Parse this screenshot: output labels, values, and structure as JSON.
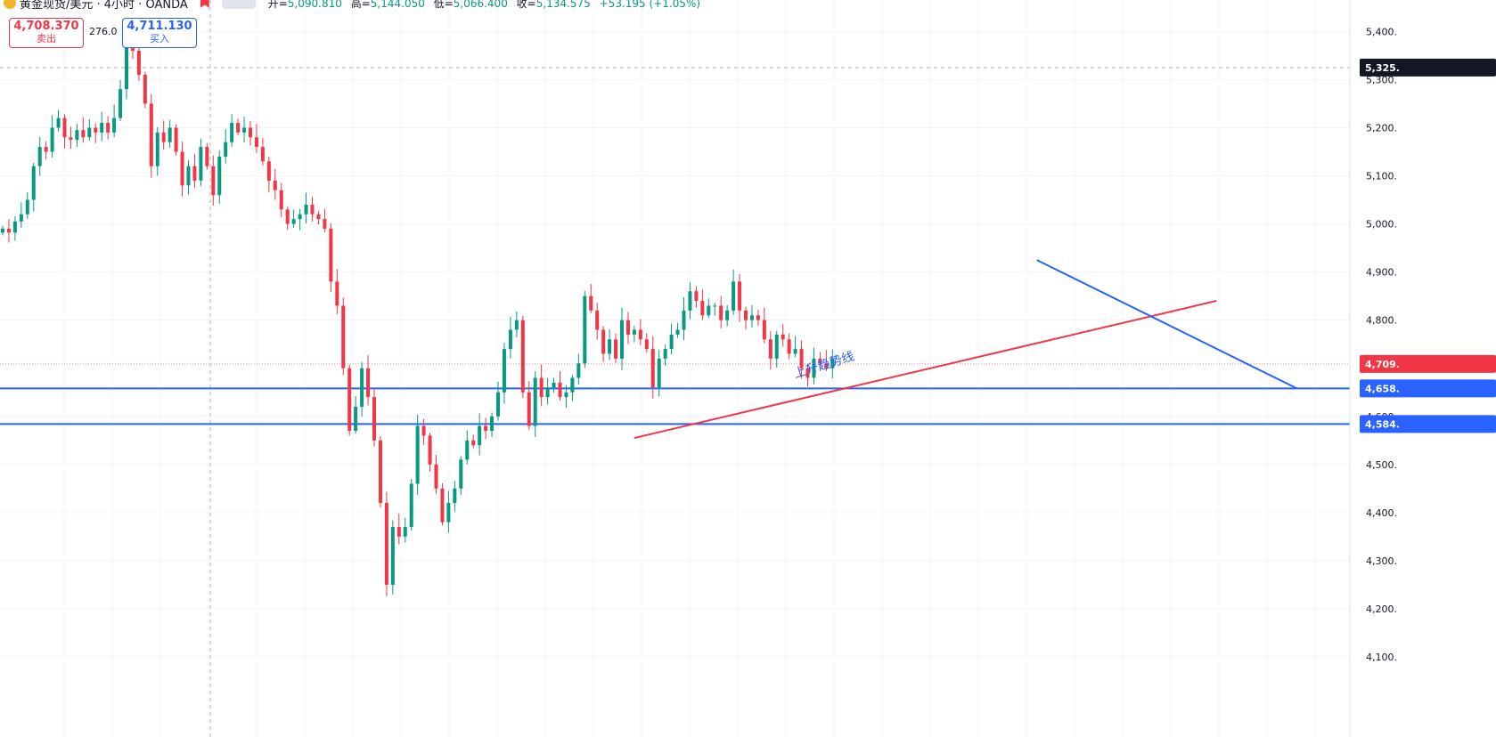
{
  "header": {
    "title": "黄金现货/美元 · 4小时 · OANDA",
    "ohlc": [
      {
        "label": "开=",
        "value": "5,090.810"
      },
      {
        "label": "高=",
        "value": "5,144.050"
      },
      {
        "label": "低=",
        "value": "5,066.400"
      },
      {
        "label": "收=",
        "value": "5,134.575"
      },
      {
        "label": "",
        "value": "+53.195 (+1.05%)"
      }
    ]
  },
  "trade": {
    "sell_price": "4,708.370",
    "sell_label": "卖出",
    "spread": "276.0",
    "buy_price": "4,711.130",
    "buy_label": "买入"
  },
  "colors": {
    "up": "#089981",
    "down": "#f23645",
    "support": "#2962ff",
    "trend_line": "#f23645",
    "resistance_line": "#2962ff"
  },
  "chart_data": {
    "type": "candlestick",
    "title": "",
    "ylim": [
      4080,
      5440
    ],
    "y_ticks": [
      "4,100.",
      "4,200.",
      "4,300.",
      "4,400.",
      "4,500.",
      "4,600.",
      "4,800.",
      "4,900.",
      "5,000.",
      "5,100.",
      "5,200.",
      "5,300.",
      "5,400."
    ],
    "y_tick_values": [
      4100,
      4200,
      4300,
      4400,
      4500,
      4600,
      4800,
      4900,
      5000,
      5100,
      5200,
      5300,
      5400
    ],
    "price_labels": [
      {
        "value": 5325,
        "text": "5,325.",
        "style": "dark"
      },
      {
        "value": 4709,
        "text": "4,709.",
        "style": "red"
      },
      {
        "value": 4658,
        "text": "4,658.",
        "style": "blue"
      },
      {
        "value": 4584,
        "text": "4,584.",
        "style": "blue"
      }
    ],
    "horizontal_lines": [
      4658,
      4584
    ],
    "lines": [
      {
        "kind": "trend",
        "from": [
          102,
          4555
        ],
        "to": [
          196,
          4840
        ]
      },
      {
        "kind": "resistance",
        "from": [
          167,
          4925
        ],
        "to": [
          209,
          4658
        ]
      }
    ],
    "annotation": {
      "text": "上升趋势线",
      "at": [
        128,
        4680
      ]
    },
    "closes": [
      4990,
      4982,
      5005,
      5020,
      5050,
      5120,
      5160,
      5150,
      5200,
      5220,
      5180,
      5175,
      5195,
      5180,
      5200,
      5190,
      5210,
      5190,
      5220,
      5280,
      5400,
      5360,
      5310,
      5250,
      5120,
      5190,
      5170,
      5200,
      5150,
      5080,
      5120,
      5090,
      5160,
      5120,
      5060,
      5140,
      5170,
      5210,
      5190,
      5200,
      5180,
      5160,
      5130,
      5090,
      5070,
      5030,
      5000,
      5010,
      5020,
      5040,
      5020,
      5010,
      4990,
      4880,
      4830,
      4700,
      4570,
      4620,
      4700,
      4640,
      4550,
      4420,
      4250,
      4370,
      4350,
      4370,
      4460,
      4580,
      4560,
      4500,
      4450,
      4380,
      4420,
      4450,
      4510,
      4550,
      4540,
      4580,
      4570,
      4600,
      4650,
      4740,
      4780,
      4800,
      4650,
      4580,
      4680,
      4640,
      4660,
      4670,
      4640,
      4650,
      4680,
      4710,
      4850,
      4820,
      4780,
      4730,
      4760,
      4720,
      4800,
      4770,
      4780,
      4760,
      4740,
      4660,
      4720,
      4740,
      4770,
      4780,
      4820,
      4860,
      4840,
      4810,
      4830,
      4830,
      4800,
      4820,
      4880,
      4820,
      4800,
      4810,
      4800,
      4760,
      4720,
      4770,
      4760,
      4730,
      4740,
      4700,
      4680,
      4720,
      4710,
      4700,
      4720
    ]
  }
}
